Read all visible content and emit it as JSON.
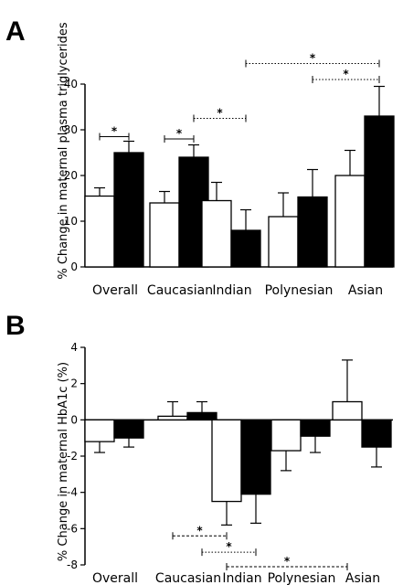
{
  "chart_data": [
    {
      "panel": "A",
      "type": "bar",
      "ylabel": "% Change in maternal plasma triglycerides",
      "ylim": [
        0,
        40
      ],
      "yticks": [
        0,
        10,
        20,
        30,
        40
      ],
      "categories": [
        "Overall",
        "Caucasian",
        "Indian",
        "Polynesian",
        "Asian"
      ],
      "series": [
        {
          "fill": "#ffffff",
          "values": [
            15.5,
            14.0,
            14.5,
            11.0,
            20.0
          ],
          "errors": [
            1.8,
            2.5,
            4.0,
            5.2,
            5.5
          ]
        },
        {
          "fill": "#000000",
          "values": [
            25.0,
            24.0,
            8.0,
            15.3,
            33.0
          ],
          "errors": [
            2.5,
            2.7,
            4.5,
            6.0,
            6.5
          ]
        }
      ],
      "significance": [
        {
          "from": [
            0,
            0
          ],
          "to": [
            0,
            1
          ],
          "y": 28.5,
          "style": "solid",
          "label": "*"
        },
        {
          "from": [
            1,
            0
          ],
          "to": [
            1,
            1
          ],
          "y": 28.0,
          "style": "solid",
          "label": "*"
        },
        {
          "from": [
            1,
            1
          ],
          "to": [
            2,
            1
          ],
          "y": 32.5,
          "style": "dotted",
          "label": "*"
        },
        {
          "from": [
            3,
            1
          ],
          "to": [
            4,
            1
          ],
          "y": 41.0,
          "style": "dotted",
          "label": "*"
        },
        {
          "from": [
            2,
            1
          ],
          "to": [
            4,
            1
          ],
          "y": 44.5,
          "style": "dotted",
          "label": "*"
        }
      ],
      "grid": false
    },
    {
      "panel": "B",
      "type": "bar",
      "ylabel": "% Change in maternal HbA1c (%)",
      "ylim": [
        -8,
        4
      ],
      "yticks": [
        -8,
        -6,
        -4,
        -2,
        0,
        2,
        4
      ],
      "categories": [
        "Overall",
        "Caucasian",
        "Indian",
        "Polynesian",
        "Asian"
      ],
      "series": [
        {
          "fill": "#ffffff",
          "values": [
            -1.2,
            0.2,
            -4.5,
            -1.7,
            1.0
          ],
          "errors": [
            0.6,
            0.8,
            1.3,
            1.1,
            2.3
          ]
        },
        {
          "fill": "#000000",
          "values": [
            -1.0,
            0.4,
            -4.1,
            -0.9,
            -1.5
          ],
          "errors": [
            0.5,
            0.6,
            1.6,
            0.9,
            1.1
          ]
        }
      ],
      "significance": [
        {
          "from": [
            1,
            0
          ],
          "to": [
            2,
            0
          ],
          "y": -6.4,
          "style": "dashed",
          "label": "*"
        },
        {
          "from": [
            1,
            1
          ],
          "to": [
            2,
            1
          ],
          "y": -7.3,
          "style": "dotted",
          "label": "*"
        },
        {
          "from": [
            2,
            0
          ],
          "to": [
            4,
            0
          ],
          "y": -8.1,
          "style": "dashed",
          "label": "*"
        }
      ],
      "grid": false
    }
  ],
  "panel_letters": [
    "A",
    "B"
  ]
}
